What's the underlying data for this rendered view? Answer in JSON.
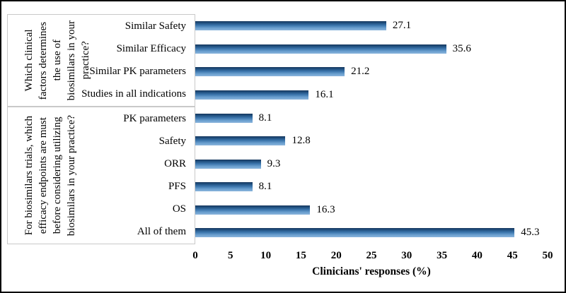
{
  "chart_data": {
    "type": "bar",
    "orientation": "horizontal",
    "xlabel": "Clinicians' responses (%)",
    "xlim": [
      0,
      50
    ],
    "x_ticks": [
      0,
      5,
      10,
      15,
      20,
      25,
      30,
      35,
      40,
      45,
      50
    ],
    "grid": false,
    "legend": false,
    "value_label_decimals": 1,
    "bar_gradient": {
      "stops": [
        "#16365c",
        "#1f4e7d",
        "#3a74ab",
        "#6ba0cf",
        "#8ab4dc"
      ],
      "positions": [
        0,
        18,
        45,
        75,
        100
      ]
    },
    "groups": [
      {
        "question": "Which clinical factors determines the use of biosimilars in your practice?",
        "question_lines": [
          "Which clinical",
          "factors determines",
          "the use of",
          "biosimilars in your",
          "practice?"
        ],
        "items": [
          {
            "category": "Similar Safety",
            "value": 27.1
          },
          {
            "category": "Similar Efficacy",
            "value": 35.6
          },
          {
            "category": "Similar PK parameters",
            "value": 21.2
          },
          {
            "category": "Studies in all indications",
            "value": 16.1
          }
        ]
      },
      {
        "question": "For biosimilars trials, which efficacy endpoints are must before considering utilizing biosimilars in your practice?",
        "question_lines": [
          "For biosimilars trials, which",
          "efficacy  endpoints are must",
          "before considering utilizing",
          "biosimilars in your practice?"
        ],
        "items": [
          {
            "category": "PK parameters",
            "value": 8.1
          },
          {
            "category": "Safety",
            "value": 12.8
          },
          {
            "category": "ORR",
            "value": 9.3
          },
          {
            "category": "PFS",
            "value": 8.1
          },
          {
            "category": "OS",
            "value": 16.3
          },
          {
            "category": "All of them",
            "value": 45.3
          }
        ]
      }
    ]
  }
}
